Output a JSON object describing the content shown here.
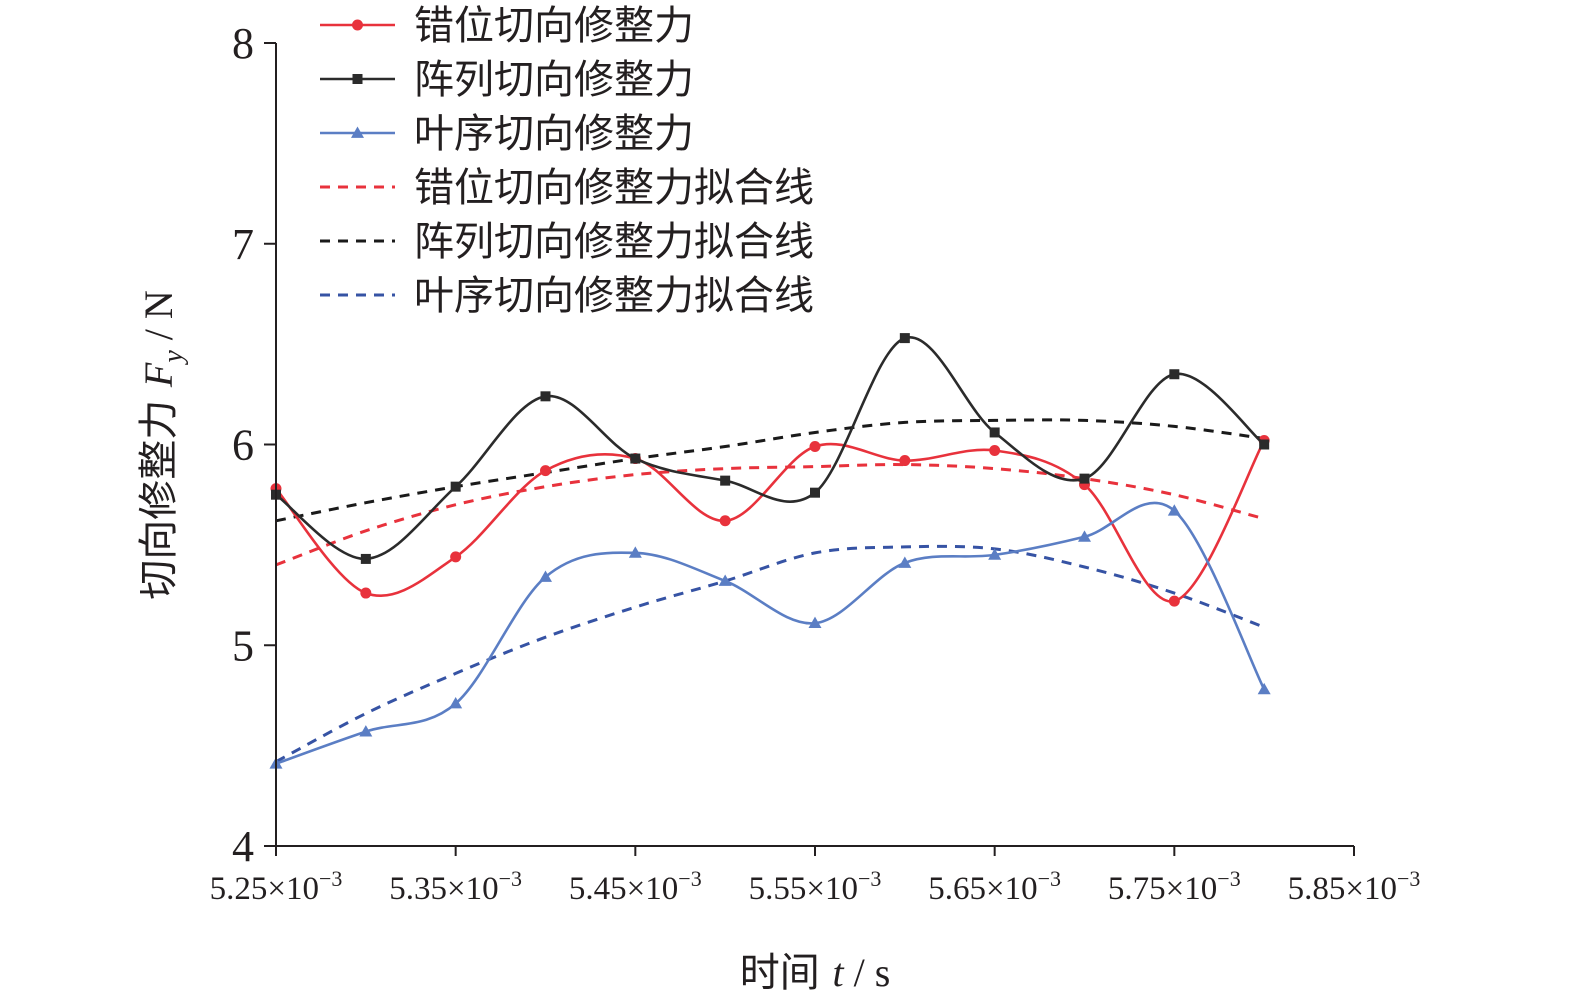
{
  "chart_data": {
    "type": "line",
    "title": "",
    "xlabel": {
      "prefix": "时间 ",
      "var": "t",
      "unit": " / s"
    },
    "ylabel": {
      "prefix": "切向修整力 ",
      "var": "F",
      "sub": "y",
      "unit": " / N"
    },
    "xlim": [
      5.25,
      5.85
    ],
    "ylim": [
      4,
      8
    ],
    "x_ticks": [
      {
        "value": 5.25,
        "mantissa": "5.25×10",
        "exp": "−3"
      },
      {
        "value": 5.35,
        "mantissa": "5.35×10",
        "exp": "−3"
      },
      {
        "value": 5.45,
        "mantissa": "5.45×10",
        "exp": "−3"
      },
      {
        "value": 5.55,
        "mantissa": "5.55×10",
        "exp": "−3"
      },
      {
        "value": 5.65,
        "mantissa": "5.65×10",
        "exp": "−3"
      },
      {
        "value": 5.75,
        "mantissa": "5.75×10",
        "exp": "−3"
      },
      {
        "value": 5.85,
        "mantissa": "5.85×10",
        "exp": "−3"
      }
    ],
    "y_ticks": [
      {
        "value": 4,
        "label": "4"
      },
      {
        "value": 5,
        "label": "5"
      },
      {
        "value": 6,
        "label": "6"
      },
      {
        "value": 7,
        "label": "7"
      },
      {
        "value": 8,
        "label": "8"
      }
    ],
    "x": [
      5.25,
      5.3,
      5.35,
      5.4,
      5.45,
      5.5,
      5.55,
      5.6,
      5.65,
      5.7,
      5.75,
      5.8
    ],
    "grid": false,
    "legend_position": "top-left",
    "series": [
      {
        "name": "错位切向修整力",
        "kind": "data",
        "marker": "circle",
        "color": "#e8323c",
        "values": [
          5.78,
          5.26,
          5.44,
          5.87,
          5.93,
          5.62,
          5.99,
          5.92,
          5.97,
          5.8,
          5.22,
          6.02
        ]
      },
      {
        "name": "阵列切向修整力",
        "kind": "data",
        "marker": "square",
        "color": "#2b2b2b",
        "values": [
          5.75,
          5.43,
          5.79,
          6.24,
          5.93,
          5.82,
          5.76,
          6.53,
          6.06,
          5.83,
          6.35,
          6.0
        ]
      },
      {
        "name": "叶序切向修整力",
        "kind": "data",
        "marker": "triangle",
        "color": "#5b7ec4",
        "values": [
          4.41,
          4.57,
          4.71,
          5.34,
          5.46,
          5.32,
          5.11,
          5.41,
          5.45,
          5.54,
          5.67,
          4.78
        ]
      },
      {
        "name": "错位切向修整力拟合线",
        "kind": "fit",
        "color": "#e8323c",
        "values": [
          5.4,
          5.57,
          5.7,
          5.79,
          5.85,
          5.88,
          5.89,
          5.9,
          5.88,
          5.83,
          5.75,
          5.63
        ]
      },
      {
        "name": "阵列切向修整力拟合线",
        "kind": "fit",
        "color": "#1a1a1a",
        "values": [
          5.62,
          5.71,
          5.79,
          5.86,
          5.93,
          5.99,
          6.06,
          6.11,
          6.12,
          6.12,
          6.09,
          6.03
        ]
      },
      {
        "name": "叶序切向修整力拟合线",
        "kind": "fit",
        "color": "#3653a4",
        "values": [
          4.42,
          4.66,
          4.86,
          5.04,
          5.19,
          5.32,
          5.46,
          5.49,
          5.48,
          5.39,
          5.26,
          5.09
        ]
      }
    ]
  }
}
